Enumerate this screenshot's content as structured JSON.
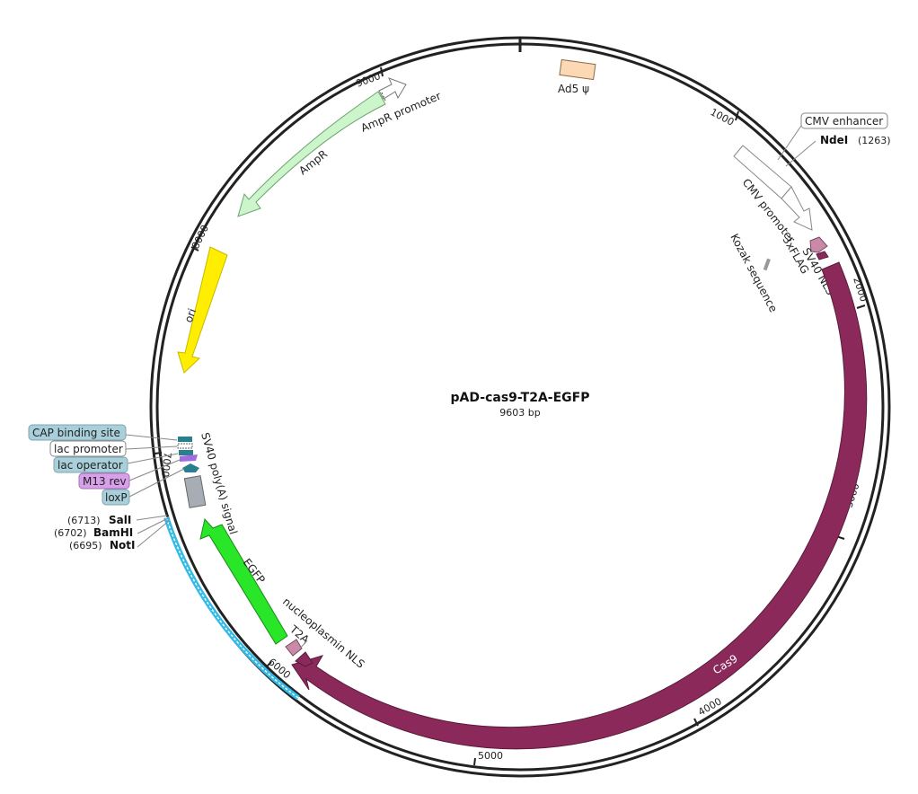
{
  "plasmid": {
    "name": "pAD-cas9-T2A-EGFP",
    "size_label": "9603 bp",
    "length": 9603
  },
  "ticks": [
    "1000",
    "2000",
    "3000",
    "4000",
    "5000",
    "6000",
    "7000",
    "8000",
    "9000"
  ],
  "features": {
    "ad5": "Ad5 ψ",
    "cmv_enhancer": "CMV enhancer",
    "cmv_promoter": "CMV promoter",
    "kozak": "Kozak sequence",
    "flag": "3xFLAG",
    "sv40_nls": "SV40 NLS",
    "cas9": "Cas9",
    "nucleoplasmin_nls": "nucleoplasmin NLS",
    "t2a": "T2A",
    "egfp": "EGFP",
    "sv40_polya": "SV40 poly(A) signal",
    "ori": "ori",
    "ampr": "AmpR",
    "ampr_promoter": "AmpR promoter"
  },
  "callouts": {
    "cap": "CAP binding site",
    "lac_promoter": "lac promoter",
    "lac_operator": "lac operator",
    "m13_rev": "M13 rev",
    "loxp": "loxP"
  },
  "sites": {
    "ndei": {
      "name": "NdeI",
      "pos": "(1263)"
    },
    "sali": {
      "name": "SalI",
      "pos": "(6713)"
    },
    "bamhi": {
      "name": "BamHI",
      "pos": "(6702)"
    },
    "noti": {
      "name": "NotI",
      "pos": "(6695)"
    }
  },
  "colors": {
    "cas9": "#8b2a5a",
    "sv40_nls": "#c88aa6",
    "egfp": "#29e629",
    "ori": "#ffee00",
    "ampr": "#ccf5cc",
    "ad5": "#fcd8b4",
    "blue_segment": "#33bbe6",
    "teal_feature": "#2a7f8f",
    "m13": "#d9a0ea",
    "callout_blue": "#a8cfda"
  }
}
